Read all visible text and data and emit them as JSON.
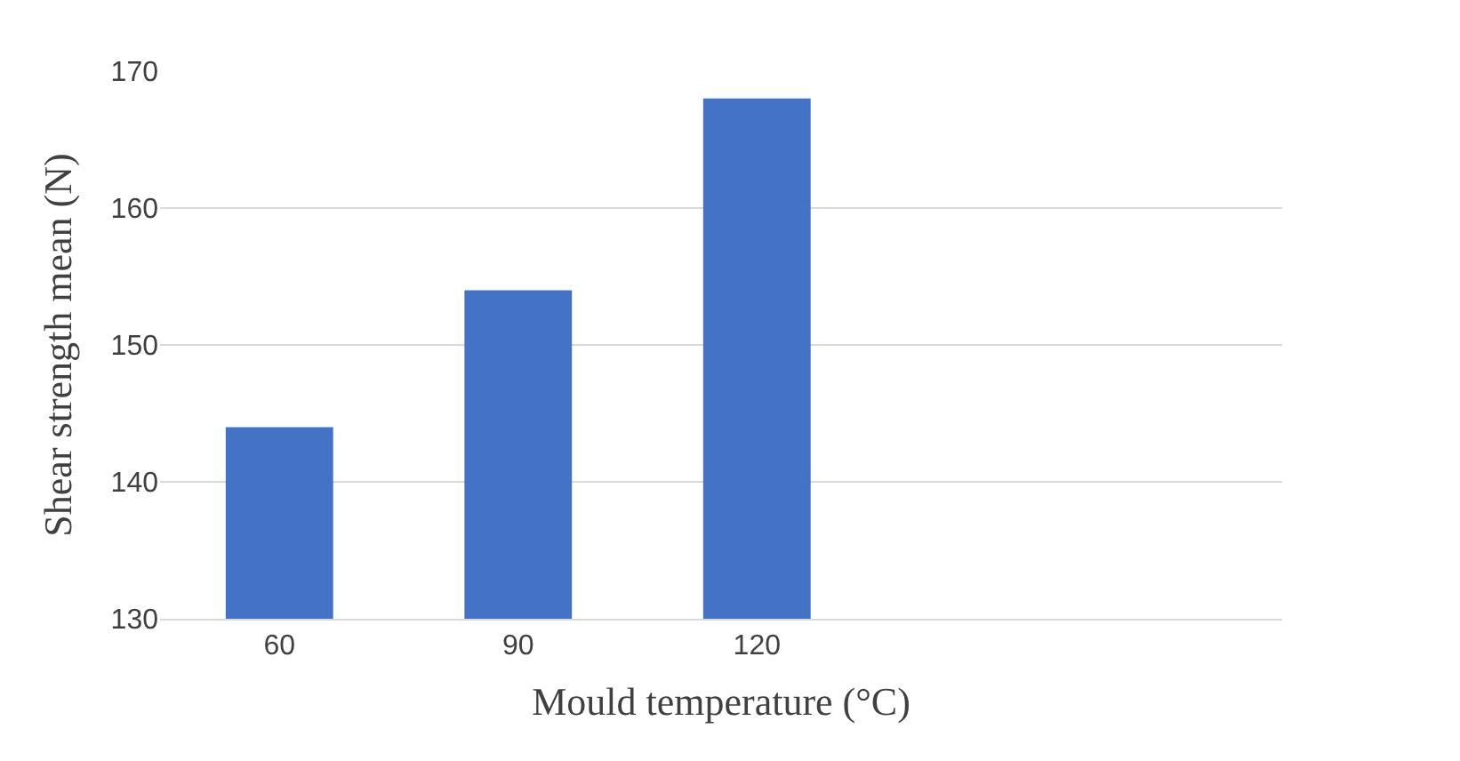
{
  "chart_data": {
    "type": "bar",
    "xlabel": "Mould temperature (°C)",
    "ylabel": "Shear strength mean (N)",
    "categories": [
      "60",
      "90",
      "120"
    ],
    "values": [
      144,
      154,
      168
    ],
    "color": "#4472c4",
    "ylim": [
      130,
      170
    ],
    "yticks": [
      130,
      140,
      150,
      160,
      170
    ],
    "grid": "y",
    "legend": false
  }
}
